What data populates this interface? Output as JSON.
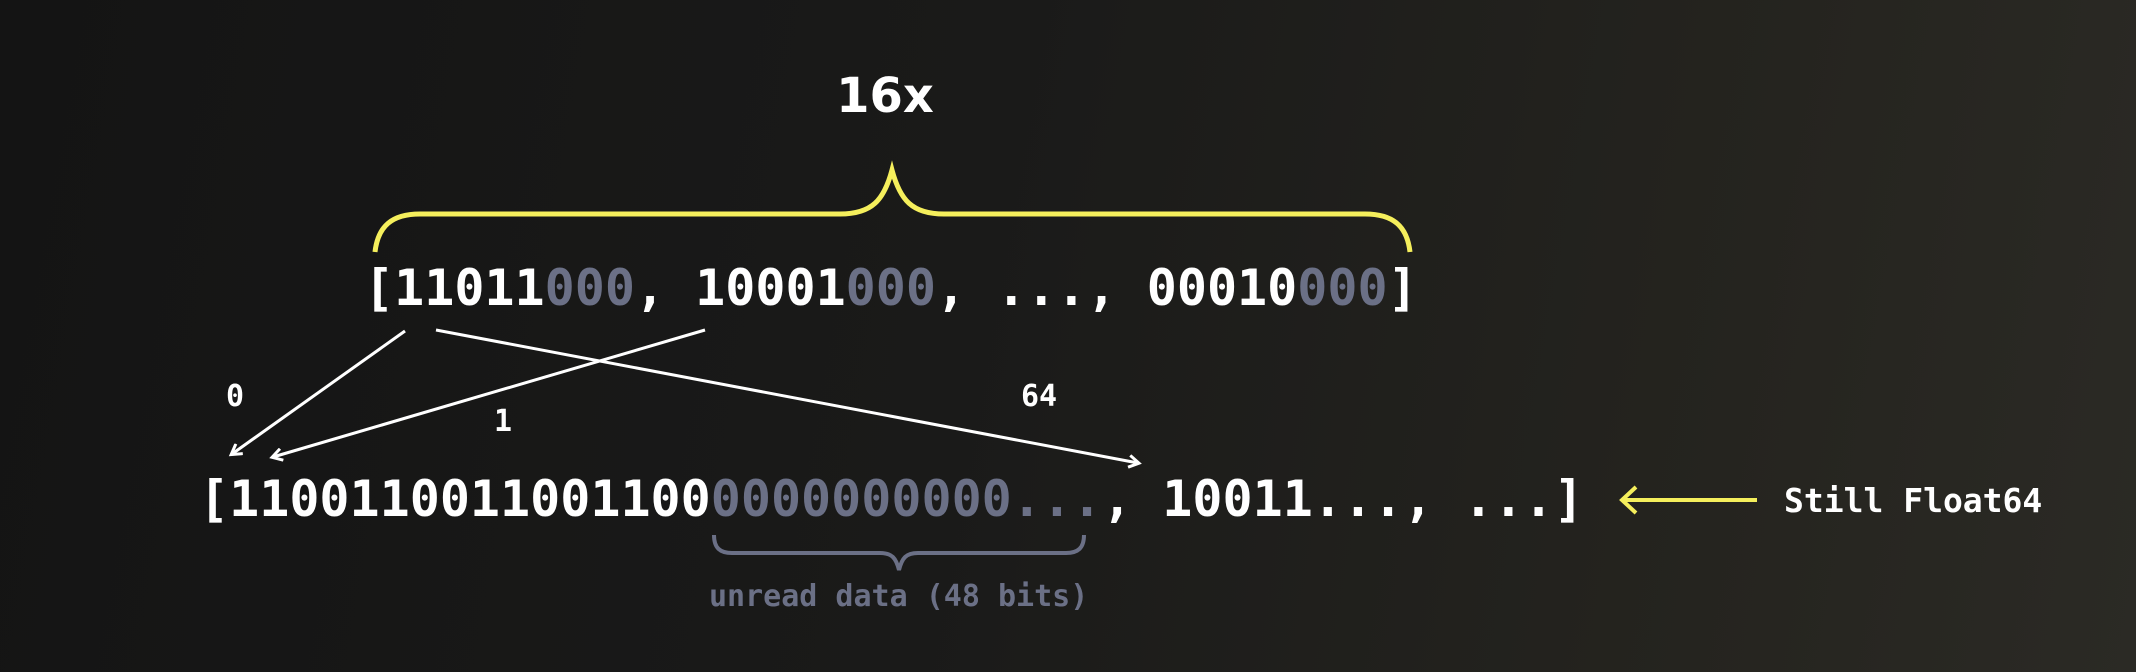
{
  "title": "16x",
  "top_array": {
    "open": "[",
    "items": [
      {
        "bits": "11011",
        "padding": "000"
      },
      {
        "bits": "10001",
        "padding": "000"
      },
      {
        "bits": "00010",
        "padding": "000"
      }
    ],
    "separator": ", ",
    "ellipsis": "...",
    "close": "]"
  },
  "bottom_array": {
    "open": "[",
    "read_bits": "1100110011001100",
    "unread_bits": "0000000000",
    "unread_ellipsis": "...",
    "rest": ", 10011..., ...",
    "close": "]"
  },
  "arrow_labels": {
    "first": "0",
    "second": "1",
    "third": "64"
  },
  "unread_label": "unread data (48 bits)",
  "side_label": "Still Float64",
  "colors": {
    "accent": "#f5ef5c",
    "dim": "#6b7086",
    "text": "#ffffff"
  },
  "icons": [
    "brace",
    "arrow-left"
  ]
}
